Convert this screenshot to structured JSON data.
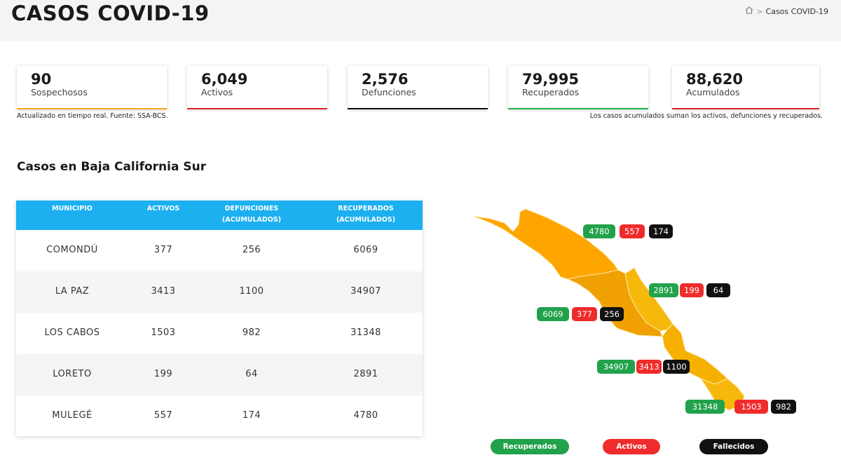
{
  "header": {
    "title": "CASOS COVID-19",
    "breadcrumb": {
      "home_icon": "home-icon",
      "separator": ">",
      "current": "Casos COVID-19"
    }
  },
  "stats": [
    {
      "value": "90",
      "label": "Sospechosos",
      "color": "#f5a623"
    },
    {
      "value": "6,049",
      "label": "Activos",
      "color": "#e02424"
    },
    {
      "value": "2,576",
      "label": "Defunciones",
      "color": "#111111"
    },
    {
      "value": "79,995",
      "label": "Recuperados",
      "color": "#1fb14b"
    },
    {
      "value": "88,620",
      "label": "Acumulados",
      "color": "#e02424"
    }
  ],
  "notes": {
    "left": "Actualizado en tiempo real. Fuente: SSA-BCS.",
    "right": "Los casos acumulados suman los activos, defunciones y recuperados."
  },
  "section_title": "Casos en Baja California Sur",
  "table": {
    "header_color": "#1cb0f0",
    "columns": [
      {
        "line1": "MUNICIPIO",
        "line2": ""
      },
      {
        "line1": "ACTIVOS",
        "line2": ""
      },
      {
        "line1": "DEFUNCIONES",
        "line2": "(ACUMULADOS)"
      },
      {
        "line1": "RECUPERADOS",
        "line2": "(ACUMULADOS)"
      }
    ],
    "rows": [
      {
        "municipio": "COMONDÚ",
        "activos": "377",
        "defunciones": "256",
        "recuperados": "6069"
      },
      {
        "municipio": "LA PAZ",
        "activos": "3413",
        "defunciones": "1100",
        "recuperados": "34907"
      },
      {
        "municipio": "LOS CABOS",
        "activos": "1503",
        "defunciones": "982",
        "recuperados": "31348"
      },
      {
        "municipio": "LORETO",
        "activos": "199",
        "defunciones": "64",
        "recuperados": "2891"
      },
      {
        "municipio": "MULEGÉ",
        "activos": "557",
        "defunciones": "174",
        "recuperados": "4780"
      }
    ]
  },
  "map": {
    "colors": {
      "north": "#ffa500",
      "middle": "#f2a100",
      "south": "#f7b80c",
      "border": "#ffe7a8"
    },
    "labels": [
      {
        "municipio": "Mulegé",
        "recuperados": "4780",
        "activos": "557",
        "fallecidos": "174"
      },
      {
        "municipio": "Loreto",
        "recuperados": "2891",
        "activos": "199",
        "fallecidos": "64"
      },
      {
        "municipio": "Comondú",
        "recuperados": "6069",
        "activos": "377",
        "fallecidos": "256"
      },
      {
        "municipio": "La Paz",
        "recuperados": "34907",
        "activos": "3413",
        "fallecidos": "1100"
      },
      {
        "municipio": "Los Cabos",
        "recuperados": "31348",
        "activos": "1503",
        "fallecidos": "982"
      }
    ]
  },
  "legend": {
    "recuperados": "Recuperados",
    "activos": "Activos",
    "fallecidos": "Fallecidos"
  }
}
